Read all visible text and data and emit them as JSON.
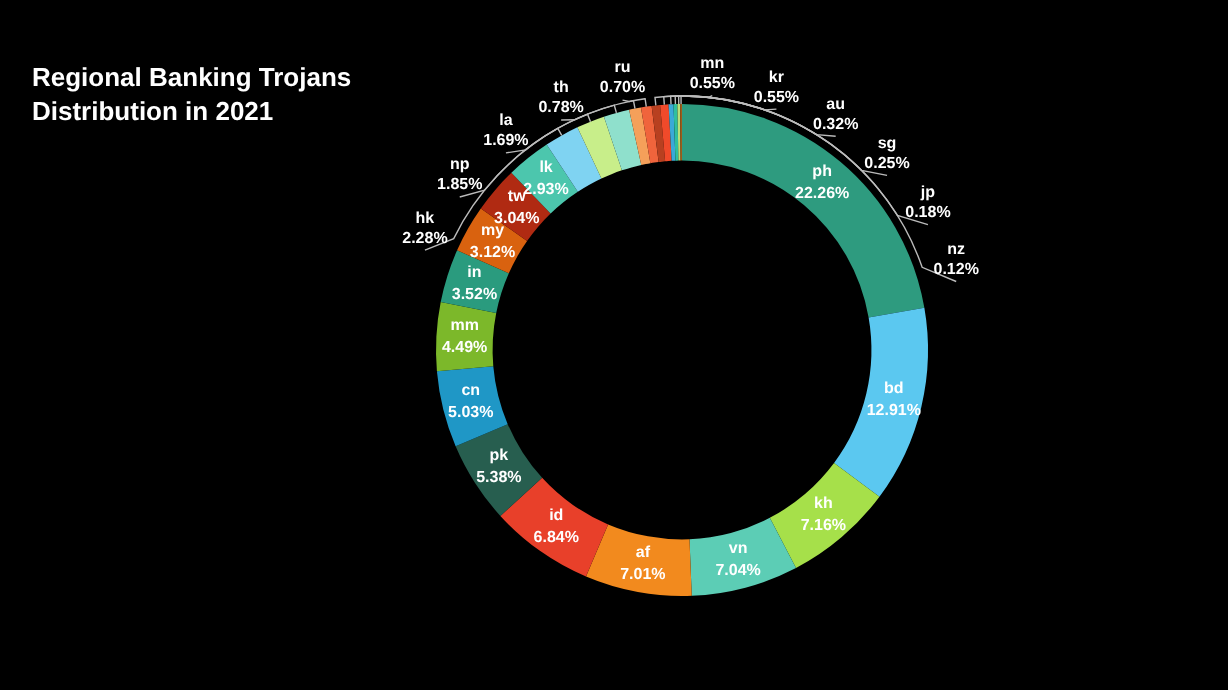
{
  "chart_data": {
    "type": "donut",
    "title": "Regional Banking Trojans\nDistribution in 2021",
    "categories": [
      "ph",
      "bd",
      "kh",
      "vn",
      "af",
      "id",
      "pk",
      "cn",
      "mm",
      "in",
      "my",
      "tw",
      "lk",
      "hk",
      "np",
      "la",
      "th",
      "ru",
      "mn",
      "kr",
      "au",
      "sg",
      "jp",
      "nz"
    ],
    "values": [
      22.26,
      12.91,
      7.16,
      7.04,
      7.01,
      6.84,
      5.38,
      5.03,
      4.49,
      3.52,
      3.12,
      3.04,
      2.93,
      2.28,
      1.85,
      1.69,
      0.78,
      0.7,
      0.55,
      0.55,
      0.32,
      0.25,
      0.18,
      0.12
    ],
    "colors": [
      "#2e9b7f",
      "#5bc8f0",
      "#a6e04a",
      "#5ccdb5",
      "#f28a1e",
      "#e8402a",
      "#275e4f",
      "#1f97c6",
      "#7cb82a",
      "#2a9b7e",
      "#d9620f",
      "#b02a12",
      "#4cc6ad",
      "#7fd3f2",
      "#c8ee8a",
      "#8fe0cc",
      "#f5a05a",
      "#f0643c",
      "#b84020",
      "#f04a2a",
      "#3aa9d8",
      "#2fbf9f",
      "#b6e07a",
      "#a05a18"
    ],
    "value_labels": [
      "22.26%",
      "12.91%",
      "7.16%",
      "7.04%",
      "7.01%",
      "6.84%",
      "5.38%",
      "5.03%",
      "4.49%",
      "3.52%",
      "3.12%",
      "3.04%",
      "2.93%",
      "2.28%",
      "1.85%",
      "1.69%",
      "0.78%",
      "0.70%",
      "0.55%",
      "0.55%",
      "0.32%",
      "0.25%",
      "0.18%",
      "0.12%"
    ],
    "legend": false
  }
}
